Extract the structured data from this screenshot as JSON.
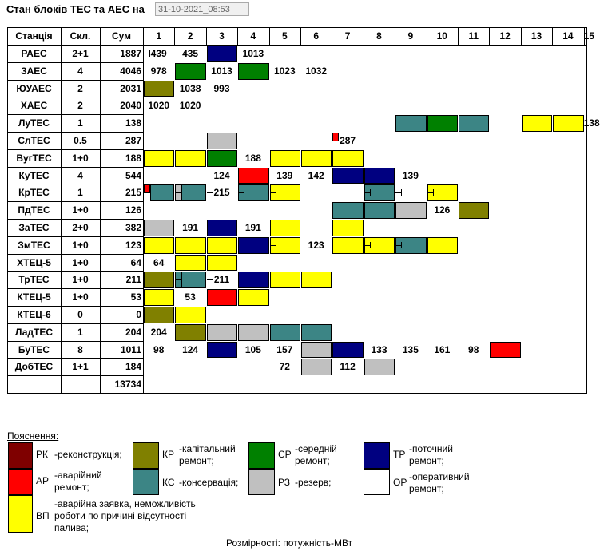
{
  "header": {
    "title": "Стан блоків ТЕС та АЕС на",
    "datetime": "31-10-2021_08:53"
  },
  "table": {
    "col_station": "Станція",
    "col_skl": "Скл.",
    "col_sum": "Сум",
    "units": [
      "1",
      "2",
      "3",
      "4",
      "5",
      "6",
      "7",
      "8",
      "9",
      "10",
      "11",
      "12",
      "13",
      "14",
      "15"
    ],
    "rows": [
      {
        "name": "РАЕС",
        "skl": "2+1",
        "sum": "1887"
      },
      {
        "name": "ЗАЕС",
        "skl": "4",
        "sum": "4046"
      },
      {
        "name": "ЮУАЕС",
        "skl": "2",
        "sum": "2031"
      },
      {
        "name": "ХАЕС",
        "skl": "2",
        "sum": "2040"
      },
      {
        "name": "ЛуТЕС",
        "skl": "1",
        "sum": "138"
      },
      {
        "name": "СлТЕС",
        "skl": "0.5",
        "sum": "287"
      },
      {
        "name": "ВугТЕС",
        "skl": "1+0",
        "sum": "188"
      },
      {
        "name": "КуТЕС",
        "skl": "4",
        "sum": "544"
      },
      {
        "name": "КрТЕС",
        "skl": "1",
        "sum": "215"
      },
      {
        "name": "ПдТЕС",
        "skl": "1+0",
        "sum": "126"
      },
      {
        "name": "ЗаТЕС",
        "skl": "2+0",
        "sum": "382"
      },
      {
        "name": "ЗмТЕС",
        "skl": "1+0",
        "sum": "123"
      },
      {
        "name": "ХТЕЦ-5",
        "skl": "1+0",
        "sum": "64"
      },
      {
        "name": "ТрТЕС",
        "skl": "1+0",
        "sum": "211"
      },
      {
        "name": "КТЕЦ-5",
        "skl": "1+0",
        "sum": "53"
      },
      {
        "name": "КТЕЦ-6",
        "skl": "0",
        "sum": "0"
      },
      {
        "name": "ЛадТЕС",
        "skl": "1",
        "sum": "204"
      },
      {
        "name": "БуТЕС",
        "skl": "8",
        "sum": "1011"
      },
      {
        "name": "ДобТЕС",
        "skl": "1+1",
        "sum": "184"
      }
    ],
    "total": "13734",
    "cells": [
      {
        "r": 0,
        "c": 1,
        "v": "439"
      },
      {
        "r": 0,
        "c": 2,
        "v": "435"
      },
      {
        "r": 0,
        "c": 3,
        "s": "tr"
      },
      {
        "r": 0,
        "c": 4,
        "v": "1013"
      },
      {
        "r": 1,
        "c": 1,
        "v": "978"
      },
      {
        "r": 1,
        "c": 2,
        "s": "cp"
      },
      {
        "r": 1,
        "c": 3,
        "v": "1013"
      },
      {
        "r": 1,
        "c": 4,
        "s": "cp"
      },
      {
        "r": 1,
        "c": 5,
        "v": "1023"
      },
      {
        "r": 1,
        "c": 6,
        "v": "1032"
      },
      {
        "r": 2,
        "c": 1,
        "s": "kr"
      },
      {
        "r": 2,
        "c": 2,
        "v": "1038"
      },
      {
        "r": 2,
        "c": 3,
        "v": "993"
      },
      {
        "r": 3,
        "c": 1,
        "v": "1020"
      },
      {
        "r": 3,
        "c": 2,
        "v": "1020"
      },
      {
        "r": 4,
        "c": 9,
        "s": "ks"
      },
      {
        "r": 4,
        "c": 10,
        "s": "cp"
      },
      {
        "r": 4,
        "c": 11,
        "s": "ks"
      },
      {
        "r": 4,
        "c": 13,
        "s": "vp"
      },
      {
        "r": 4,
        "c": 14,
        "s": "vp"
      },
      {
        "r": 4,
        "c": 15,
        "v": "138"
      },
      {
        "r": 5,
        "c": 3,
        "s": "rz"
      },
      {
        "r": 5,
        "c": 7,
        "v": "287"
      },
      {
        "r": 6,
        "c": 1,
        "s": "vp"
      },
      {
        "r": 6,
        "c": 2,
        "s": "vp"
      },
      {
        "r": 6,
        "c": 3,
        "s": "cp"
      },
      {
        "r": 6,
        "c": 4,
        "v": "188"
      },
      {
        "r": 6,
        "c": 5,
        "s": "vp"
      },
      {
        "r": 6,
        "c": 6,
        "s": "vp"
      },
      {
        "r": 6,
        "c": 7,
        "s": "vp"
      },
      {
        "r": 7,
        "c": 3,
        "v": "124"
      },
      {
        "r": 7,
        "c": 4,
        "s": "ap"
      },
      {
        "r": 7,
        "c": 5,
        "v": "139"
      },
      {
        "r": 7,
        "c": 6,
        "v": "142"
      },
      {
        "r": 7,
        "c": 7,
        "s": "tr"
      },
      {
        "r": 7,
        "c": 8,
        "s": "tr"
      },
      {
        "r": 7,
        "c": 9,
        "v": "139"
      },
      {
        "r": 8,
        "c": 2,
        "s": "rz"
      },
      {
        "r": 8,
        "c": 3,
        "v": "215"
      },
      {
        "r": 8,
        "c": 4,
        "s": "ks"
      },
      {
        "r": 8,
        "c": 5,
        "s": "vp"
      },
      {
        "r": 8,
        "c": 8,
        "s": "ks"
      },
      {
        "r": 8,
        "c": 10,
        "s": "vp"
      },
      {
        "r": 9,
        "c": 7,
        "s": "ks"
      },
      {
        "r": 9,
        "c": 8,
        "s": "ks"
      },
      {
        "r": 9,
        "c": 9,
        "s": "rz"
      },
      {
        "r": 9,
        "c": 10,
        "v": "126"
      },
      {
        "r": 9,
        "c": 11,
        "s": "kr"
      },
      {
        "r": 10,
        "c": 1,
        "s": "rz"
      },
      {
        "r": 10,
        "c": 2,
        "v": "191"
      },
      {
        "r": 10,
        "c": 3,
        "s": "tr"
      },
      {
        "r": 10,
        "c": 4,
        "v": "191"
      },
      {
        "r": 10,
        "c": 5,
        "s": "vp"
      },
      {
        "r": 10,
        "c": 7,
        "s": "vp"
      },
      {
        "r": 11,
        "c": 1,
        "s": "vp"
      },
      {
        "r": 11,
        "c": 2,
        "s": "vp"
      },
      {
        "r": 11,
        "c": 3,
        "s": "vp"
      },
      {
        "r": 11,
        "c": 4,
        "s": "tr"
      },
      {
        "r": 11,
        "c": 5,
        "s": "vp"
      },
      {
        "r": 11,
        "c": 6,
        "v": "123"
      },
      {
        "r": 11,
        "c": 7,
        "s": "vp"
      },
      {
        "r": 11,
        "c": 8,
        "s": "vp"
      },
      {
        "r": 11,
        "c": 9,
        "s": "ks"
      },
      {
        "r": 11,
        "c": 10,
        "s": "vp"
      },
      {
        "r": 12,
        "c": 1,
        "v": "64"
      },
      {
        "r": 12,
        "c": 2,
        "s": "vp"
      },
      {
        "r": 12,
        "c": 3,
        "s": "vp"
      },
      {
        "r": 13,
        "c": 1,
        "s": "kr"
      },
      {
        "r": 13,
        "c": 2,
        "s": "ks"
      },
      {
        "r": 13,
        "c": 3,
        "v": "211"
      },
      {
        "r": 13,
        "c": 4,
        "s": "tr"
      },
      {
        "r": 13,
        "c": 5,
        "s": "vp"
      },
      {
        "r": 13,
        "c": 6,
        "s": "vp"
      },
      {
        "r": 14,
        "c": 1,
        "s": "vp"
      },
      {
        "r": 14,
        "c": 2,
        "v": "53"
      },
      {
        "r": 14,
        "c": 3,
        "s": "ap"
      },
      {
        "r": 14,
        "c": 4,
        "s": "vp"
      },
      {
        "r": 15,
        "c": 1,
        "s": "kr"
      },
      {
        "r": 15,
        "c": 2,
        "s": "vp"
      },
      {
        "r": 16,
        "c": 1,
        "v": "204"
      },
      {
        "r": 16,
        "c": 2,
        "s": "kr"
      },
      {
        "r": 16,
        "c": 3,
        "s": "rz"
      },
      {
        "r": 16,
        "c": 4,
        "s": "rz"
      },
      {
        "r": 16,
        "c": 5,
        "s": "ks"
      },
      {
        "r": 16,
        "c": 6,
        "s": "ks"
      },
      {
        "r": 17,
        "c": 1,
        "v": "98"
      },
      {
        "r": 17,
        "c": 2,
        "v": "124"
      },
      {
        "r": 17,
        "c": 3,
        "s": "tr"
      },
      {
        "r": 17,
        "c": 4,
        "v": "105"
      },
      {
        "r": 17,
        "c": 5,
        "v": "157"
      },
      {
        "r": 17,
        "c": 6,
        "s": "rz"
      },
      {
        "r": 17,
        "c": 7,
        "s": "tr"
      },
      {
        "r": 17,
        "c": 8,
        "v": "133"
      },
      {
        "r": 17,
        "c": 9,
        "v": "135"
      },
      {
        "r": 17,
        "c": 10,
        "v": "161"
      },
      {
        "r": 17,
        "c": 11,
        "v": "98"
      },
      {
        "r": 17,
        "c": 12,
        "s": "ap"
      },
      {
        "r": 18,
        "c": 5,
        "v": "72"
      },
      {
        "r": 18,
        "c": 6,
        "s": "rz"
      },
      {
        "r": 18,
        "c": 7,
        "v": "112"
      },
      {
        "r": 18,
        "c": 8,
        "s": "rz"
      }
    ],
    "splits": [
      {
        "r": 5,
        "c": 7,
        "left": "ap",
        "right": "none"
      },
      {
        "r": 8,
        "c": 1,
        "left": "ap",
        "right": "ks"
      },
      {
        "r": 8,
        "c": 2,
        "left": "rz",
        "right": "ks"
      },
      {
        "r": 13,
        "c": 2,
        "left": "ks",
        "right": "ks"
      }
    ]
  },
  "colors": {
    "rk": "#7f0000",
    "ap": "#ff0000",
    "kr": "#808000",
    "ks": "#3c8585",
    "cp": "#008000",
    "rz": "#c0c0c0",
    "tr": "#000080",
    "op": "#ffffff",
    "vp": "#ffff00"
  },
  "legend": {
    "title": "Пояснення:",
    "rk_code": "РК",
    "rk_text": "-реконструкція;",
    "kr_code": "КР",
    "kr_text1": "-капітальний",
    "kr_text2": "ремонт;",
    "cp_code": "СР",
    "cp_text1": "-середній",
    "cp_text2": "ремонт;",
    "tr_code": "ТР",
    "tr_text1": "-поточний",
    "tr_text2": "ремонт;",
    "ap_code": "АР",
    "ap_text1": "-аварійний",
    "ap_text2": "ремонт;",
    "ks_code": "КС",
    "ks_text": "-консервація;",
    "rz_code": "РЗ",
    "rz_text": "-резерв;",
    "op_code": "ОР",
    "op_text1": "-оперативний",
    "op_text2": "ремонт;",
    "vp_code": "ВП",
    "vp_text1": "-аварійна заявка, неможливість",
    "vp_text2": "роботи по причині відсутності",
    "vp_text3": "палива;",
    "units_note": "Розмірності: потужність-МВт"
  }
}
